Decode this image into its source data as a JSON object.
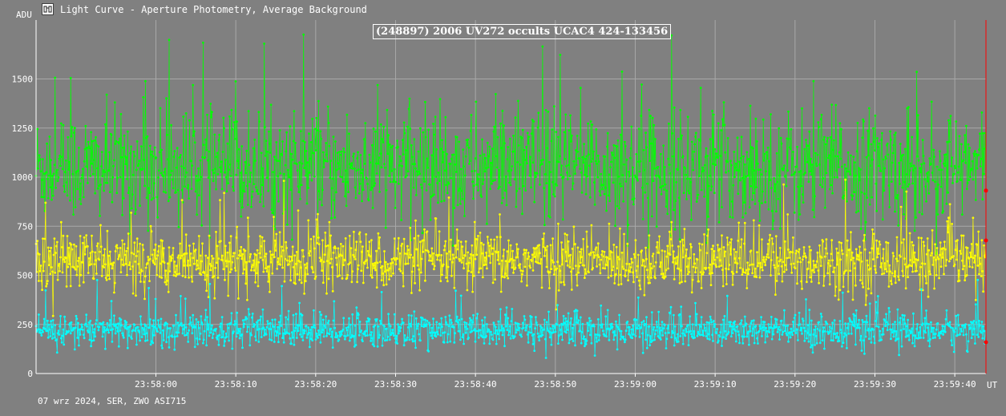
{
  "window": {
    "title": "Light Curve - Aperture Photometry, Average Background"
  },
  "footer": {
    "text": "07 wrz 2024, SER, ZWO ASI715"
  },
  "colors": {
    "background": "#808080",
    "grid": "#a8a8a8",
    "series_green": "#00ff00",
    "series_yellow": "#ffff00",
    "series_cyan": "#00ffff",
    "cursor": "#ff0000"
  },
  "chart_data": {
    "type": "scatter",
    "title": "(248897) 2006 UV272 occults UCAC4 424-133456",
    "ylabel": "ADU",
    "xlabel": "UT",
    "ylim": [
      0,
      1800
    ],
    "yticks": [
      0,
      250,
      500,
      750,
      1000,
      1250,
      1500
    ],
    "ytick_labels": [
      "0",
      "250",
      "500",
      "750",
      "1000",
      "1250",
      "1500"
    ],
    "xlim_seconds": [
      0,
      118.9
    ],
    "xticks_seconds": [
      15,
      25,
      35,
      45,
      55,
      65,
      75,
      85,
      95,
      105,
      115
    ],
    "xtick_labels": [
      "23:58:00",
      "23:58:10",
      "23:58:20",
      "23:58:30",
      "23:58:40",
      "23:58:50",
      "23:59:00",
      "23:59:10",
      "23:59:20",
      "23:59:30",
      "23:59:40"
    ],
    "grid": true,
    "markers_with_lines": true,
    "cursor_at_end": true,
    "series": [
      {
        "color": "green",
        "mean": 1050,
        "stdev": 140,
        "n_points": 1400
      },
      {
        "color": "yellow",
        "mean": 575,
        "stdev": 75,
        "n_points": 1400
      },
      {
        "color": "cyan",
        "mean": 220,
        "stdev": 45,
        "n_points": 1400
      }
    ]
  }
}
